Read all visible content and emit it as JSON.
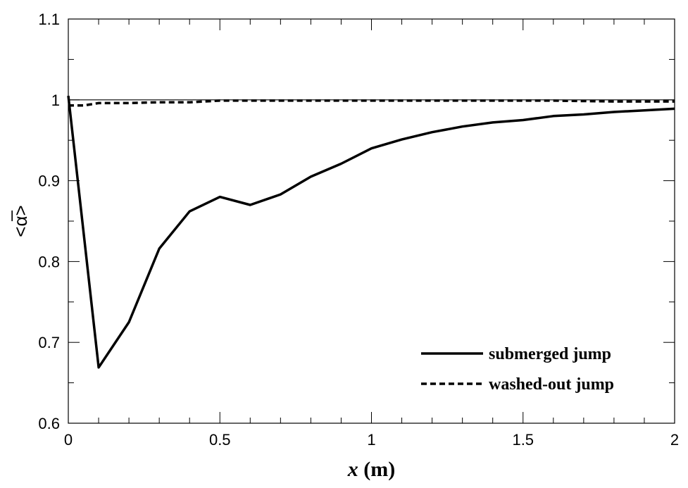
{
  "chart_data": {
    "type": "line",
    "title": "",
    "xlabel": "x (m)",
    "xlabel_var": "x",
    "xlabel_unit": " (m)",
    "ylabel": "<α̅>",
    "xlim": [
      0,
      2
    ],
    "ylim": [
      0.6,
      1.1
    ],
    "xticks": [
      0,
      0.5,
      1,
      1.5,
      2
    ],
    "yticks": [
      0.6,
      0.7,
      0.8,
      0.9,
      1,
      1.1
    ],
    "xtick_labels": [
      "0",
      "0.5",
      "1",
      "1.5",
      "2"
    ],
    "ytick_labels": [
      "0.6",
      "0.7",
      "0.8",
      "0.9",
      "1",
      "1.1"
    ],
    "reference_line": 1.0,
    "legend_position": "bottom-right",
    "series": [
      {
        "name": "submerged jump",
        "style": "solid",
        "color": "#000000",
        "x": [
          0,
          0.1,
          0.2,
          0.3,
          0.4,
          0.5,
          0.6,
          0.7,
          0.8,
          0.9,
          1.0,
          1.1,
          1.2,
          1.3,
          1.4,
          1.5,
          1.6,
          1.7,
          1.8,
          1.9,
          2.0
        ],
        "y": [
          1.005,
          0.669,
          0.725,
          0.816,
          0.862,
          0.88,
          0.87,
          0.883,
          0.905,
          0.921,
          0.94,
          0.951,
          0.96,
          0.967,
          0.972,
          0.975,
          0.98,
          0.982,
          0.985,
          0.987,
          0.989
        ]
      },
      {
        "name": "washed-out jump",
        "style": "dashed",
        "color": "#000000",
        "x": [
          0,
          0.05,
          0.1,
          0.2,
          0.3,
          0.4,
          0.5,
          0.6,
          0.8,
          1.0,
          1.2,
          1.4,
          1.6,
          1.8,
          2.0
        ],
        "y": [
          0.993,
          0.993,
          0.996,
          0.996,
          0.997,
          0.997,
          0.999,
          0.999,
          0.999,
          0.999,
          0.999,
          0.999,
          0.999,
          0.998,
          0.998
        ]
      }
    ]
  }
}
